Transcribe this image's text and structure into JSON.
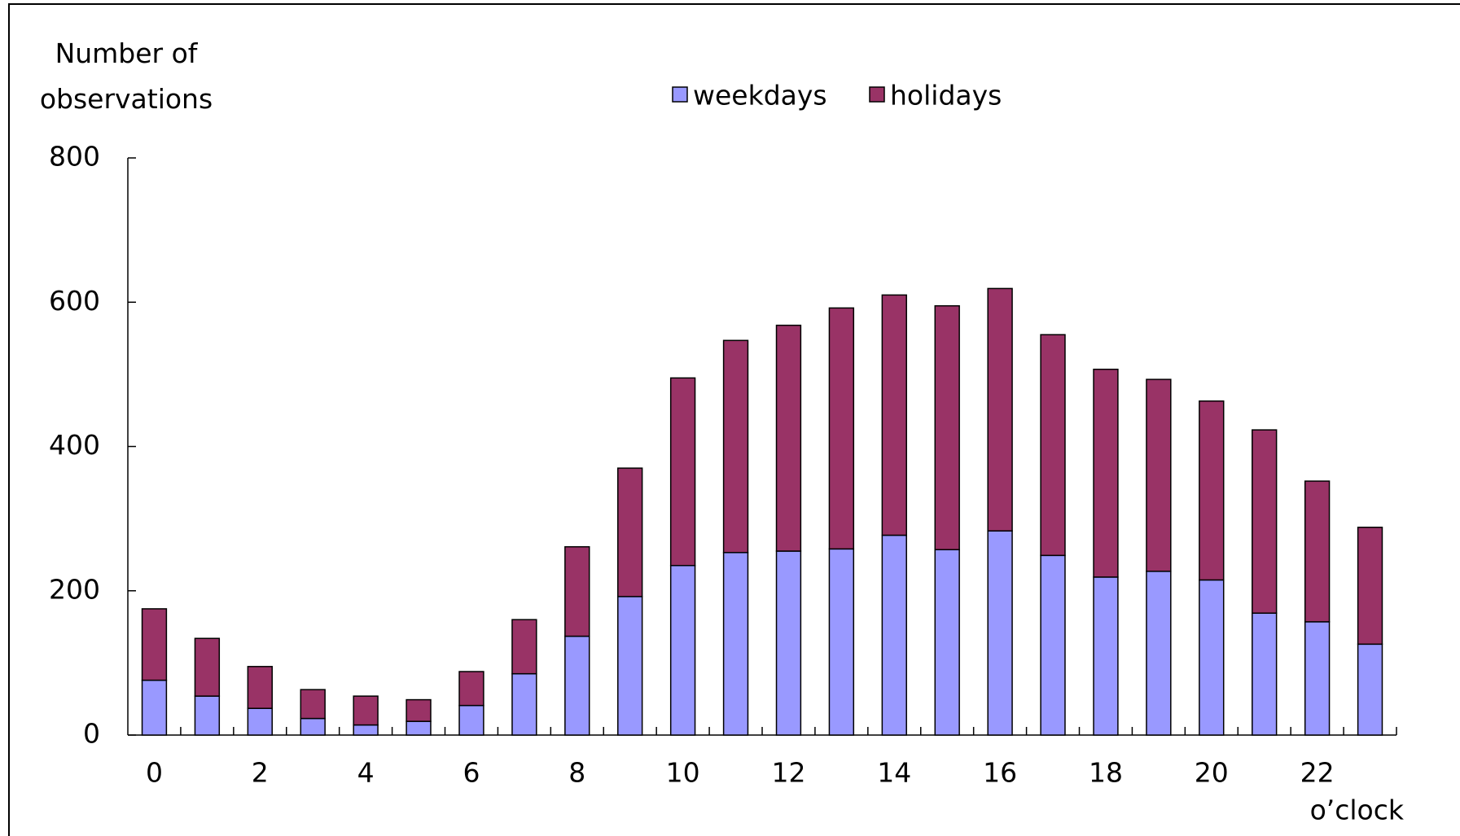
{
  "chart_data": {
    "type": "bar",
    "stacked": true,
    "y_label": "Number of observations",
    "x_label": "o’clock",
    "categories": [
      "0",
      null,
      "2",
      null,
      "4",
      null,
      "6",
      null,
      "8",
      null,
      "10",
      null,
      "12",
      null,
      "14",
      null,
      "16",
      null,
      "18",
      null,
      "20",
      null,
      "22",
      null
    ],
    "series": [
      {
        "name": "weekdays",
        "color": "#9999ff",
        "values": [
          76,
          54,
          37,
          23,
          14,
          19,
          41,
          85,
          137,
          192,
          235,
          253,
          255,
          258,
          277,
          257,
          283,
          249,
          219,
          227,
          215,
          169,
          157,
          126
        ]
      },
      {
        "name": "holidays",
        "color": "#993366",
        "values": [
          99,
          80,
          58,
          40,
          40,
          30,
          47,
          75,
          124,
          178,
          260,
          294,
          313,
          334,
          333,
          338,
          336,
          306,
          288,
          266,
          248,
          254,
          195,
          162
        ]
      }
    ],
    "ylim": [
      0,
      800
    ],
    "yticks": [
      0,
      200,
      400,
      600,
      800
    ],
    "grid": false
  }
}
